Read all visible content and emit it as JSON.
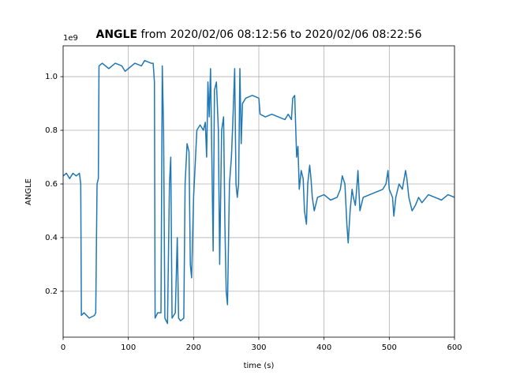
{
  "chart_data": {
    "type": "line",
    "title": [
      "ANGLE",
      "from 2020/02/06 08:12:56 to 2020/02/06 08:22:56"
    ],
    "xlabel": "time (s)",
    "ylabel": "ANGLE",
    "y_offset": "1e9",
    "x": [
      0,
      5,
      10,
      15,
      20,
      25,
      27,
      28,
      32,
      40,
      48,
      50,
      52,
      54,
      55,
      60,
      70,
      80,
      90,
      95,
      100,
      110,
      120,
      125,
      135,
      138,
      140,
      141,
      145,
      150,
      152,
      154,
      156,
      160,
      163,
      165,
      167,
      172,
      175,
      177,
      180,
      185,
      187,
      190,
      193,
      195,
      197,
      200,
      205,
      210,
      215,
      218,
      220,
      222,
      224,
      226,
      228,
      230,
      232,
      235,
      238,
      240,
      243,
      246,
      248,
      250,
      252,
      255,
      258,
      260,
      263,
      265,
      267,
      269,
      271,
      273,
      275,
      280,
      290,
      300,
      302,
      310,
      320,
      330,
      340,
      345,
      350,
      352,
      355,
      358,
      360,
      362,
      365,
      368,
      370,
      373,
      375,
      378,
      380,
      382,
      385,
      390,
      400,
      410,
      420,
      425,
      428,
      432,
      435,
      437,
      440,
      443,
      445,
      448,
      450,
      452,
      455,
      460,
      470,
      480,
      490,
      495,
      498,
      500,
      505,
      507,
      510,
      515,
      520,
      525,
      527,
      530,
      535,
      540,
      545,
      550,
      560,
      570,
      580,
      590,
      600
    ],
    "series": [
      {
        "name": "ANGLE",
        "color": "#1f77b4",
        "values": [
          0.63,
          0.64,
          0.62,
          0.64,
          0.63,
          0.64,
          0.6,
          0.11,
          0.12,
          0.1,
          0.11,
          0.12,
          0.6,
          0.62,
          1.04,
          1.05,
          1.03,
          1.05,
          1.04,
          1.02,
          1.03,
          1.05,
          1.04,
          1.06,
          1.05,
          1.05,
          0.98,
          0.1,
          0.12,
          0.12,
          1.04,
          0.8,
          0.1,
          0.08,
          0.6,
          0.7,
          0.1,
          0.12,
          0.4,
          0.1,
          0.09,
          0.1,
          0.6,
          0.75,
          0.72,
          0.3,
          0.25,
          0.55,
          0.8,
          0.82,
          0.8,
          0.83,
          0.7,
          0.98,
          0.85,
          1.03,
          0.7,
          0.35,
          0.95,
          0.98,
          0.8,
          0.3,
          0.8,
          0.85,
          0.45,
          0.2,
          0.15,
          0.6,
          0.7,
          0.82,
          1.03,
          0.6,
          0.55,
          0.6,
          1.03,
          0.75,
          0.9,
          0.92,
          0.93,
          0.92,
          0.86,
          0.85,
          0.86,
          0.85,
          0.84,
          0.86,
          0.84,
          0.92,
          0.93,
          0.7,
          0.74,
          0.58,
          0.65,
          0.62,
          0.5,
          0.45,
          0.6,
          0.67,
          0.62,
          0.55,
          0.5,
          0.55,
          0.56,
          0.54,
          0.55,
          0.58,
          0.63,
          0.6,
          0.45,
          0.38,
          0.5,
          0.58,
          0.55,
          0.52,
          0.58,
          0.65,
          0.5,
          0.55,
          0.56,
          0.57,
          0.58,
          0.6,
          0.65,
          0.58,
          0.55,
          0.48,
          0.55,
          0.6,
          0.58,
          0.65,
          0.62,
          0.55,
          0.5,
          0.52,
          0.55,
          0.53,
          0.56,
          0.55,
          0.54,
          0.56,
          0.55
        ]
      }
    ],
    "xlim": [
      0,
      600
    ],
    "xticks": [
      0,
      100,
      200,
      300,
      400,
      500,
      600
    ],
    "ylim": [
      0.029,
      1.115
    ],
    "yticks": [
      0.2,
      0.4,
      0.6,
      0.8,
      {
        "value": 1,
        "label": "1.0"
      }
    ],
    "grid": true
  }
}
